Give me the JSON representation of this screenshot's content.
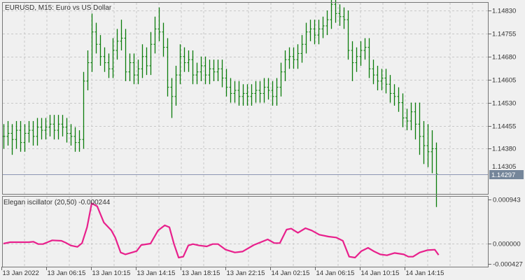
{
  "header": {
    "title": "EURUSD, M15:  Euro vs US Dollar"
  },
  "indicator": {
    "label": "Elegan iscillator (20,50) -0.000244"
  },
  "colors": {
    "background": "#f0f0f0",
    "grid": "#c8c8c8",
    "bars": "#0b7d0b",
    "oscillator": "#e8208c",
    "price_line": "#8c96b4",
    "price_box": "#75869a"
  },
  "price_axis": {
    "ticks": [
      "1.14830",
      "1.14755",
      "1.14680",
      "1.14605",
      "1.14530",
      "1.14455",
      "1.14380"
    ],
    "current_price": "1.14297",
    "hidden_tick": "1.14305"
  },
  "osc_axis": {
    "ticks": [
      "0.000943",
      "0.000000",
      "-0.000427"
    ]
  },
  "time_axis": {
    "ticks": [
      "13 Jan 2022",
      "13 Jan 06:15",
      "13 Jan 10:15",
      "13 Jan 14:15",
      "13 Jan 18:15",
      "13 Jan 22:15",
      "14 Jan 02:15",
      "14 Jan 06:15",
      "14 Jan 10:15",
      "14 Jan 14:15"
    ]
  },
  "chart_data": [
    {
      "type": "ohlc",
      "symbol": "EURUSD",
      "timeframe": "M15",
      "ylim": [
        1.142,
        1.1486
      ],
      "close": [
        1.1442,
        1.1443,
        1.1441,
        1.1444,
        1.144,
        1.1443,
        1.1444,
        1.1442,
        1.1445,
        1.1444,
        1.1445,
        1.1446,
        1.1444,
        1.1446,
        1.1445,
        1.1443,
        1.1442,
        1.144,
        1.1441,
        1.146,
        1.1466,
        1.1476,
        1.1472,
        1.1468,
        1.1466,
        1.1464,
        1.147,
        1.1473,
        1.1474,
        1.1463,
        1.1466,
        1.1462,
        1.1464,
        1.1468,
        1.1465,
        1.1472,
        1.1477,
        1.1476,
        1.1471,
        1.1458,
        1.1455,
        1.1462,
        1.1468,
        1.1466,
        1.1467,
        1.1462,
        1.1463,
        1.1465,
        1.1462,
        1.1464,
        1.1463,
        1.1464,
        1.1461,
        1.1458,
        1.1456,
        1.1457,
        1.1455,
        1.1456,
        1.1455,
        1.1456,
        1.1457,
        1.1456,
        1.1458,
        1.1457,
        1.1455,
        1.1458,
        1.1463,
        1.1467,
        1.1468,
        1.1467,
        1.1469,
        1.1472,
        1.1476,
        1.1477,
        1.1475,
        1.1477,
        1.1478,
        1.148,
        1.1485,
        1.1482,
        1.1481,
        1.148,
        1.147,
        1.1466,
        1.1468,
        1.147,
        1.1471,
        1.1464,
        1.1462,
        1.146,
        1.1461,
        1.1459,
        1.1456,
        1.1455,
        1.1453,
        1.1448,
        1.1447,
        1.145,
        1.1446,
        1.1442,
        1.1439,
        1.1437,
        1.1438,
        1.14297
      ],
      "high": [
        1.1446,
        1.1447,
        1.1446,
        1.1447,
        1.1447,
        1.1446,
        1.1447,
        1.1447,
        1.1448,
        1.1448,
        1.1448,
        1.1449,
        1.1449,
        1.1449,
        1.1449,
        1.1448,
        1.1446,
        1.1445,
        1.1444,
        1.1463,
        1.147,
        1.1482,
        1.1479,
        1.1475,
        1.1471,
        1.1469,
        1.1474,
        1.1477,
        1.148,
        1.1477,
        1.1469,
        1.1469,
        1.1467,
        1.1472,
        1.1471,
        1.1476,
        1.1481,
        1.1484,
        1.1479,
        1.1474,
        1.1461,
        1.1465,
        1.1472,
        1.1471,
        1.147,
        1.147,
        1.1466,
        1.1468,
        1.1468,
        1.1467,
        1.1467,
        1.1467,
        1.1467,
        1.1464,
        1.1461,
        1.146,
        1.146,
        1.1459,
        1.1459,
        1.1459,
        1.146,
        1.146,
        1.1461,
        1.1461,
        1.146,
        1.1461,
        1.1466,
        1.147,
        1.1471,
        1.1471,
        1.1472,
        1.1475,
        1.1479,
        1.148,
        1.148,
        1.148,
        1.1481,
        1.1483,
        1.1488,
        1.1487,
        1.1485,
        1.1484,
        1.1483,
        1.1473,
        1.1471,
        1.1473,
        1.1474,
        1.1474,
        1.1467,
        1.1465,
        1.1464,
        1.1464,
        1.1462,
        1.1459,
        1.1458,
        1.1456,
        1.1451,
        1.1453,
        1.1453,
        1.1453,
        1.1447,
        1.1446,
        1.1444,
        1.144
      ],
      "low": [
        1.1438,
        1.1439,
        1.1436,
        1.1438,
        1.1437,
        1.1437,
        1.144,
        1.1439,
        1.1439,
        1.1441,
        1.1441,
        1.1442,
        1.1441,
        1.1441,
        1.1442,
        1.144,
        1.1439,
        1.1437,
        1.1437,
        1.1438,
        1.1457,
        1.1463,
        1.1469,
        1.1465,
        1.1463,
        1.1461,
        1.1461,
        1.1467,
        1.147,
        1.146,
        1.146,
        1.1459,
        1.1459,
        1.1461,
        1.1462,
        1.1462,
        1.1469,
        1.1473,
        1.1468,
        1.1455,
        1.1448,
        1.1452,
        1.1459,
        1.1463,
        1.1463,
        1.1459,
        1.1459,
        1.146,
        1.1459,
        1.1459,
        1.146,
        1.146,
        1.1458,
        1.1455,
        1.1453,
        1.1453,
        1.1452,
        1.1452,
        1.1452,
        1.1452,
        1.1453,
        1.1453,
        1.1453,
        1.1454,
        1.1452,
        1.1452,
        1.1455,
        1.146,
        1.1464,
        1.1464,
        1.1464,
        1.1466,
        1.1469,
        1.1473,
        1.1472,
        1.1472,
        1.1474,
        1.1475,
        1.1477,
        1.1479,
        1.1478,
        1.1477,
        1.1467,
        1.146,
        1.1463,
        1.1465,
        1.1467,
        1.1461,
        1.1459,
        1.1457,
        1.1457,
        1.1456,
        1.1453,
        1.1452,
        1.145,
        1.1445,
        1.1444,
        1.1444,
        1.1441,
        1.1436,
        1.1433,
        1.1432,
        1.143,
        1.1419
      ]
    },
    {
      "type": "line",
      "name": "Elegan iscillator (20,50)",
      "ylim": [
        -0.000427,
        0.000943
      ],
      "points": [
        [
          0,
          0
        ],
        [
          1.6,
          3e-05
        ],
        [
          3.8,
          3e-05
        ],
        [
          6,
          3e-05
        ],
        [
          7.1,
          4e-05
        ],
        [
          8.3,
          -1e-05
        ],
        [
          9.4,
          -1e-05
        ],
        [
          10.5,
          3e-05
        ],
        [
          11.6,
          7e-05
        ],
        [
          13.8,
          6e-05
        ],
        [
          15,
          1e-05
        ],
        [
          16,
          -4e-05
        ],
        [
          17.6,
          -7e-05
        ],
        [
          18.7,
          1e-05
        ],
        [
          19.9,
          0.00035
        ],
        [
          21,
          0.00086
        ],
        [
          22.3,
          0.0008
        ],
        [
          23.9,
          0.00045
        ],
        [
          25.7,
          0.00028
        ],
        [
          26.6,
          0.00013
        ],
        [
          27.9,
          -0.00019
        ],
        [
          29,
          -0.00023
        ],
        [
          30.6,
          -0.00019
        ],
        [
          31.7,
          -0.00016
        ],
        [
          32.8,
          -3e-05
        ],
        [
          35,
          0
        ],
        [
          36.8,
          0.00028
        ],
        [
          38.4,
          0.00039
        ],
        [
          39.5,
          0.00035
        ],
        [
          40.6,
          -1e-05
        ],
        [
          41.7,
          -0.0003
        ],
        [
          42.8,
          -0.00028
        ],
        [
          44,
          -4e-05
        ],
        [
          45.1,
          -1e-05
        ],
        [
          46.6,
          -4e-05
        ],
        [
          48.4,
          -6e-05
        ],
        [
          49.8,
          -1e-05
        ],
        [
          51.1,
          -1e-05
        ],
        [
          52.9,
          -0.00013
        ],
        [
          55.1,
          -0.00019
        ],
        [
          56.9,
          -0.00017
        ],
        [
          59.6,
          -3e-05
        ],
        [
          62.9,
          9e-05
        ],
        [
          64.5,
          1e-05
        ],
        [
          65.8,
          1e-05
        ],
        [
          67.4,
          0.0003
        ],
        [
          68.5,
          0.00032
        ],
        [
          70.1,
          0.00023
        ],
        [
          71.9,
          0.00033
        ],
        [
          73.4,
          0.00028
        ],
        [
          75.2,
          0.00019
        ],
        [
          77.4,
          0.00015
        ],
        [
          79.2,
          0.00013
        ],
        [
          80.8,
          6e-05
        ],
        [
          82.3,
          -0.00028
        ],
        [
          83.7,
          -0.0003
        ],
        [
          85.2,
          -0.00016
        ],
        [
          86.8,
          -9e-05
        ],
        [
          88.1,
          -0.00016
        ],
        [
          89.7,
          -0.00023
        ],
        [
          91.3,
          -0.00025
        ],
        [
          93.1,
          -0.0002
        ],
        [
          95.3,
          -0.00023
        ],
        [
          96.4,
          -0.00028
        ],
        [
          97.5,
          -0.00028
        ],
        [
          99.1,
          -0.00019
        ],
        [
          100.9,
          -0.00014
        ],
        [
          102.7,
          -0.00013
        ],
        [
          103.6,
          -0.000244
        ]
      ]
    }
  ]
}
